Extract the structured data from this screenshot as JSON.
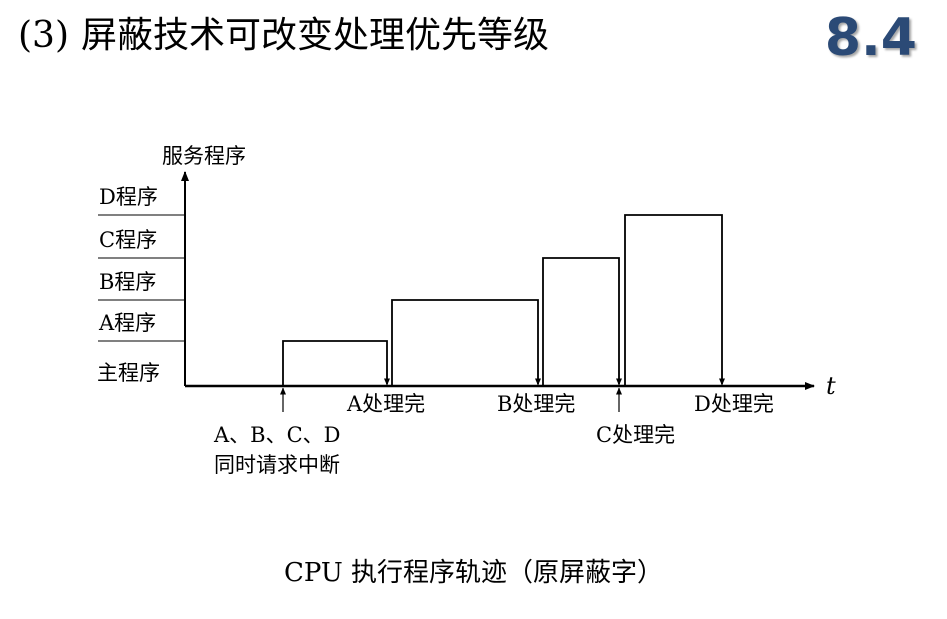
{
  "title": {
    "number": "(3)",
    "text": "屏蔽技术可改变处理优先等级"
  },
  "section_number": "8.4",
  "colors": {
    "section_number": "#2b4a76",
    "lines": "#000000"
  },
  "diagram": {
    "y_axis_label": "服务程序",
    "x_axis_label": "t",
    "levels": [
      "主程序",
      "A程序",
      "B程序",
      "C程序",
      "D程序"
    ],
    "event_labels": {
      "request_line1": "A、B、C、D",
      "request_line2": "同时请求中断",
      "a_done": "A处理完",
      "b_done": "B处理完",
      "c_done": "C处理完",
      "d_done": "D处理完"
    },
    "execution_order": [
      "主程序",
      "A程序",
      "B程序",
      "C程序",
      "D程序",
      "主程序"
    ]
  },
  "caption": "CPU 执行程序轨迹（原屏蔽字）"
}
